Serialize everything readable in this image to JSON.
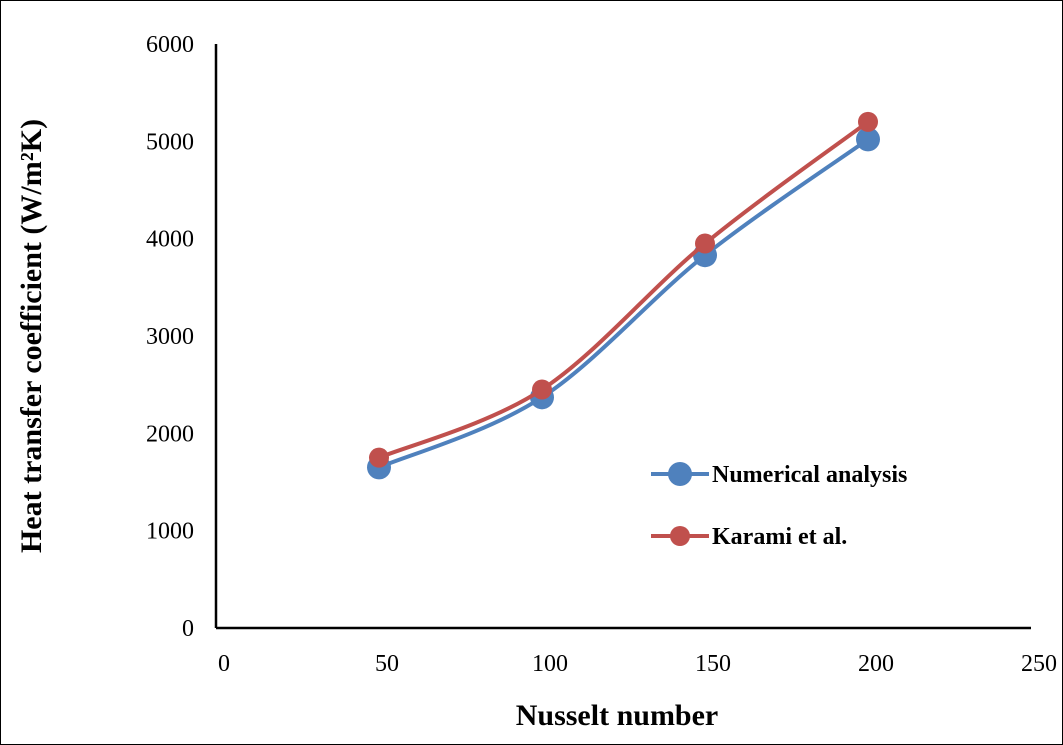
{
  "chart_data": {
    "type": "line",
    "xlabel": "Nusselt number",
    "ylabel": "Heat transfer coefficient (W/m²K)",
    "xlim": [
      0,
      250
    ],
    "ylim": [
      0,
      6000
    ],
    "x_ticks": [
      0,
      50,
      100,
      150,
      200,
      250
    ],
    "y_ticks": [
      0,
      1000,
      2000,
      3000,
      4000,
      5000,
      6000
    ],
    "grid": false,
    "legend_position": "right",
    "smooth": true,
    "series": [
      {
        "name": "Numerical analysis",
        "color": "#4F81BD",
        "x": [
          50,
          100,
          150,
          200
        ],
        "y": [
          1650,
          2370,
          3830,
          5020
        ]
      },
      {
        "name": "Karami et al.",
        "color": "#C0504D",
        "x": [
          50,
          100,
          150,
          200
        ],
        "y": [
          1750,
          2450,
          3950,
          5200
        ]
      }
    ]
  }
}
